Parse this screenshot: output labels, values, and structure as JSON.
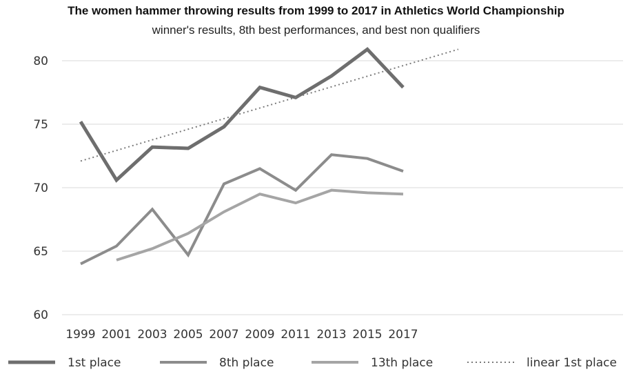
{
  "chart_data": {
    "type": "line",
    "title": "The women hammer throwing results from 1999 to 2017 in Athletics World Championship",
    "subtitle": "winner's results, 8th best performances, and best non qualifiers",
    "categories": [
      "1999",
      "2001",
      "2003",
      "2005",
      "2007",
      "2009",
      "2011",
      "2013",
      "2015",
      "2017"
    ],
    "ylim": [
      60,
      80
    ],
    "yticks": [
      60,
      65,
      70,
      75,
      80
    ],
    "grid": true,
    "legend_position": "bottom",
    "series": [
      {
        "name": "1st place",
        "color": "#6e6e6e",
        "style": "solid",
        "values": [
          75.2,
          70.6,
          73.2,
          73.1,
          74.8,
          77.9,
          77.1,
          78.8,
          80.9,
          77.9
        ]
      },
      {
        "name": "8th place",
        "color": "#8c8c8c",
        "style": "solid",
        "values": [
          64.0,
          65.4,
          68.3,
          64.7,
          70.3,
          71.5,
          69.8,
          72.6,
          72.3,
          71.3
        ]
      },
      {
        "name": "13th place",
        "color": "#a5a5a5",
        "style": "solid",
        "values": [
          null,
          64.3,
          65.2,
          66.4,
          68.1,
          69.5,
          68.8,
          69.8,
          69.6,
          69.5
        ]
      },
      {
        "name": "linear 1st place",
        "color": "#7a7a7a",
        "style": "dotted",
        "trend_start": 72.1,
        "trend_end": 80.9
      }
    ]
  }
}
